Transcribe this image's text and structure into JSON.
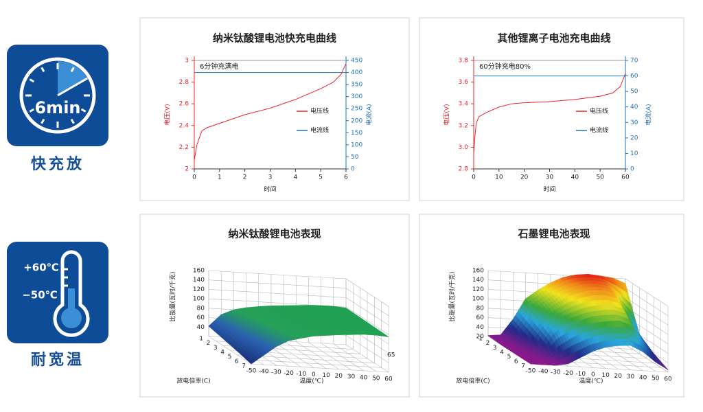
{
  "badges": [
    {
      "icon_text": "6min",
      "label": "快充放"
    },
    {
      "high": "+60℃",
      "low": "−50℃",
      "label": "耐宽温"
    }
  ],
  "chart_data": [
    {
      "type": "line",
      "title": "纳米钛酸锂电池快充电曲线",
      "annotation": "6分钟充满电",
      "xlabel": "时间",
      "ylabel": "电压(V)",
      "y2label": "电流(A)",
      "x": [
        0,
        0.1,
        0.3,
        0.5,
        1,
        2,
        3,
        4,
        5,
        5.5,
        5.8,
        6
      ],
      "series": [
        {
          "name": "电压线",
          "color": "#e8242a",
          "values": [
            2.08,
            2.22,
            2.35,
            2.38,
            2.42,
            2.5,
            2.56,
            2.64,
            2.74,
            2.8,
            2.87,
            2.97
          ]
        },
        {
          "name": "电流线",
          "color": "#1e6fb5",
          "axis": "y2",
          "values": [
            400,
            400,
            400,
            400,
            400,
            400,
            400,
            400,
            400,
            400,
            400,
            400
          ]
        }
      ],
      "xlim": [
        0,
        6
      ],
      "xticks": [
        0,
        1,
        2,
        3,
        4,
        5,
        6
      ],
      "ylim": [
        2,
        3
      ],
      "yticks": [
        2,
        2.2,
        2.4,
        2.6,
        2.8,
        3
      ],
      "y2lim": [
        0,
        450
      ],
      "y2ticks": [
        0,
        50,
        100,
        150,
        200,
        250,
        300,
        350,
        400,
        450
      ]
    },
    {
      "type": "line",
      "title": "其他锂离子电池充电曲线",
      "annotation": "60分钟充电80%",
      "xlabel": "时间",
      "ylabel": "电压(V)",
      "y2label": "电流(A)",
      "x": [
        0,
        0.5,
        1,
        2,
        5,
        10,
        15,
        20,
        30,
        40,
        50,
        55,
        58,
        60
      ],
      "series": [
        {
          "name": "电压线",
          "color": "#e8242a",
          "values": [
            2.95,
            3.1,
            3.22,
            3.28,
            3.32,
            3.37,
            3.4,
            3.41,
            3.42,
            3.44,
            3.47,
            3.5,
            3.56,
            3.68
          ]
        },
        {
          "name": "电流线",
          "color": "#1e6fb5",
          "axis": "y2",
          "values": [
            60,
            60,
            60,
            60,
            60,
            60,
            60,
            60,
            60,
            60,
            60,
            60,
            60,
            60
          ]
        }
      ],
      "xlim": [
        0,
        60
      ],
      "xticks": [
        0,
        10,
        20,
        30,
        40,
        50,
        60
      ],
      "ylim": [
        2.8,
        3.8
      ],
      "yticks": [
        2.8,
        {
          "value": 3,
          "label": "3.0"
        },
        3.2,
        3.4,
        3.6,
        3.8
      ],
      "y2lim": [
        0,
        70
      ],
      "y2ticks": [
        0,
        10,
        20,
        30,
        40,
        50,
        60,
        70
      ]
    },
    {
      "type": "surface",
      "title": "纳米钛酸锂电池表现",
      "annotation": "65",
      "xlabel": "温度(℃)",
      "ylabel": "放电倍率(C)",
      "zlabel": "比能量(瓦时/千克)",
      "x": [
        -50,
        -40,
        -30,
        -20,
        -10,
        0,
        10,
        20,
        30,
        40,
        50,
        60
      ],
      "y": [
        1,
        3,
        5,
        7
      ],
      "values": [
        [
          42,
          68,
          80,
          86,
          90,
          93,
          95,
          97,
          99,
          100,
          100,
          98
        ],
        [
          35,
          60,
          75,
          82,
          87,
          91,
          94,
          96,
          98,
          99,
          99,
          97
        ],
        [
          28,
          50,
          68,
          78,
          84,
          89,
          92,
          95,
          97,
          98,
          98,
          96
        ],
        [
          20,
          40,
          60,
          74,
          81,
          87,
          90,
          93,
          95,
          97,
          97,
          95
        ]
      ],
      "xlim": [
        -50,
        60
      ],
      "xticks": [
        -50,
        -40,
        -30,
        -20,
        -10,
        0,
        10,
        20,
        30,
        40,
        50,
        60
      ],
      "ylim": [
        1,
        7
      ],
      "yticks": [
        1,
        2,
        3,
        4,
        5,
        6,
        7
      ],
      "zlim": [
        20,
        160
      ],
      "zticks": [
        40,
        60,
        80,
        100,
        120,
        140,
        160
      ],
      "colorscale": [
        [
          20,
          "#1a2f7a"
        ],
        [
          55,
          "#2a62b0"
        ],
        [
          80,
          "#27a05a"
        ],
        [
          100,
          "#22a052"
        ]
      ]
    },
    {
      "type": "surface",
      "title": "石墨锂电池表现",
      "xlabel": "温度(℃)",
      "ylabel": "放电倍率(C)",
      "zlabel": "比能量(瓦时/千克)",
      "x": [
        -50,
        -40,
        -30,
        -20,
        -10,
        0,
        10,
        20,
        30,
        40,
        50,
        60
      ],
      "y": [
        1,
        3,
        5,
        7
      ],
      "values": [
        [
          22,
          25,
          60,
          105,
          125,
          142,
          155,
          162,
          165,
          163,
          160,
          150
        ],
        [
          20,
          22,
          45,
          90,
          110,
          128,
          140,
          148,
          150,
          145,
          100,
          60
        ],
        [
          20,
          20,
          30,
          70,
          90,
          100,
          110,
          115,
          118,
          110,
          70,
          40
        ],
        [
          20,
          20,
          20,
          25,
          40,
          55,
          65,
          70,
          72,
          60,
          40,
          25
        ]
      ],
      "xlim": [
        -50,
        60
      ],
      "xticks": [
        -50,
        -40,
        -30,
        -20,
        -10,
        0,
        10,
        20,
        30,
        40,
        50,
        60
      ],
      "ylim": [
        1,
        7
      ],
      "yticks": [
        1,
        2,
        3,
        4,
        5,
        6,
        7
      ],
      "zlim": [
        20,
        160
      ],
      "zticks": [
        20,
        40,
        60,
        80,
        100,
        120,
        140,
        160
      ],
      "colorscale": [
        [
          20,
          "#8a1a8c"
        ],
        [
          45,
          "#202c88"
        ],
        [
          75,
          "#2aa6dc"
        ],
        [
          100,
          "#3aa83a"
        ],
        [
          130,
          "#f2e21e"
        ],
        [
          150,
          "#f08a1a"
        ],
        [
          165,
          "#e01818"
        ]
      ]
    }
  ]
}
